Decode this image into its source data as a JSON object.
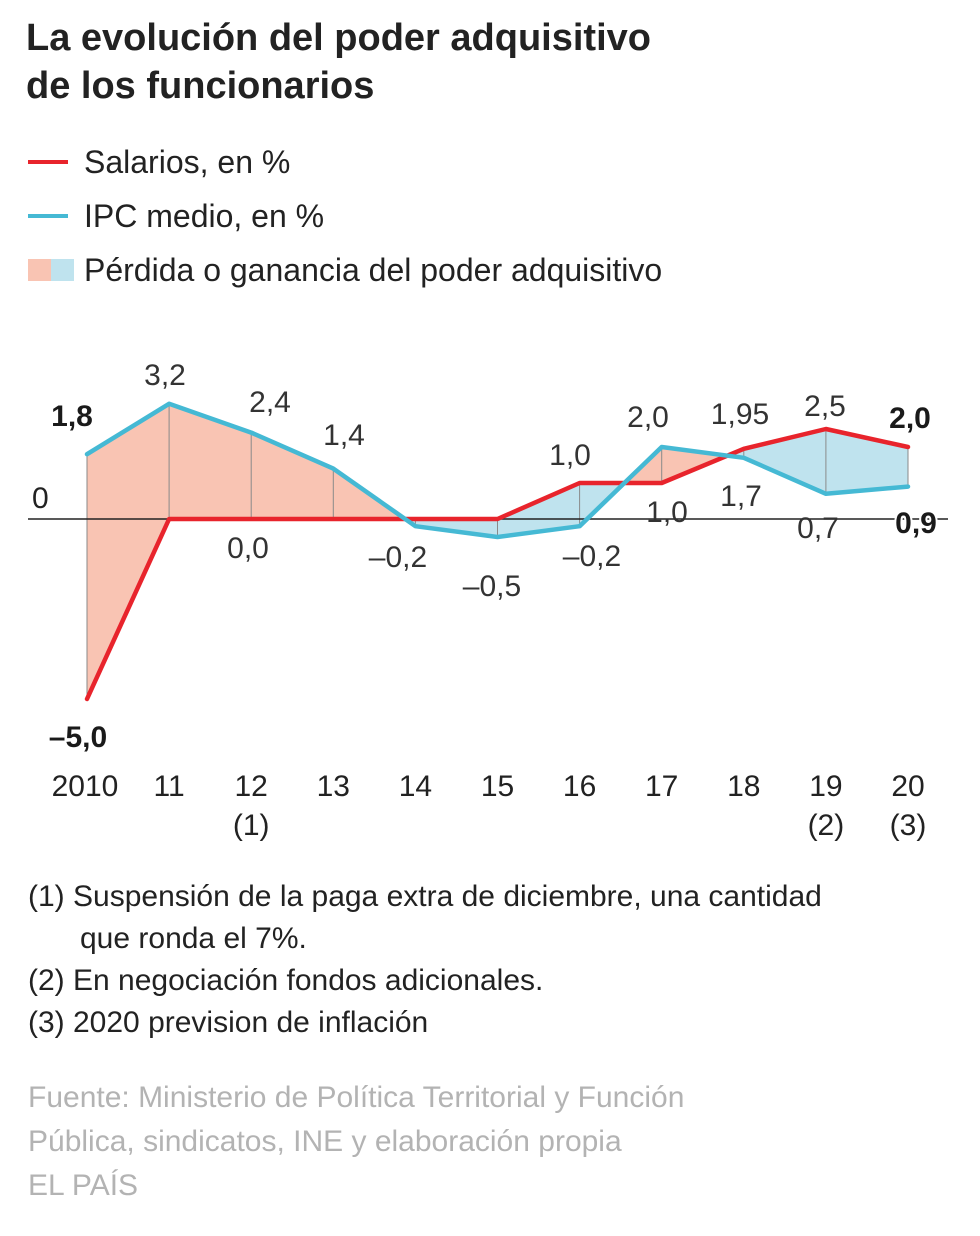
{
  "title": {
    "line1": "La evolución del poder adquisitivo",
    "line2": "de los funcionarios"
  },
  "legend": [
    {
      "label": "Salarios, en %",
      "color": "#e8242c",
      "icon": "line-swatch"
    },
    {
      "label": "IPC medio, en %",
      "color": "#45b9d4",
      "icon": "line-swatch"
    },
    {
      "label": "Pérdida o ganancia del poder adquisitivo",
      "icon": "area-swatch"
    }
  ],
  "colors": {
    "salarios": "#e8242c",
    "ipc": "#45b9d4",
    "loss_fill": "#f9c4b3",
    "gain_fill": "#bfe3ee",
    "text": "#1a1a1a",
    "source": "#b3b3b3"
  },
  "chart_data": {
    "type": "line",
    "title": "La evolución del poder adquisitivo de los funcionarios",
    "xlabel": "",
    "ylabel": "",
    "categories": [
      "2010",
      "11",
      "12",
      "13",
      "14",
      "15",
      "16",
      "17",
      "18",
      "19",
      "20"
    ],
    "category_notes": [
      "",
      "",
      "(1)",
      "",
      "",
      "",
      "",
      "",
      "",
      "(2)",
      "(3)"
    ],
    "ylim": [
      -5.5,
      3.8
    ],
    "zero_label": "0",
    "series": [
      {
        "name": "Salarios, en %",
        "color": "#e8242c",
        "values": [
          -5.0,
          0.0,
          0.0,
          0.0,
          0.0,
          0.0,
          1.0,
          1.0,
          1.95,
          2.5,
          2.0
        ],
        "labels": [
          "–5,0",
          "",
          "0,0",
          "",
          "",
          "",
          "1,0",
          "1,0",
          "1,95",
          "2,5",
          "2,0"
        ]
      },
      {
        "name": "IPC medio, en %",
        "color": "#45b9d4",
        "values": [
          1.8,
          3.2,
          2.4,
          1.4,
          -0.2,
          -0.5,
          -0.2,
          2.0,
          1.7,
          0.7,
          0.9
        ],
        "labels": [
          "1,8",
          "3,2",
          "2,4",
          "1,4",
          "–0,2",
          "–0,5",
          "–0,2",
          "2,0",
          "1,7",
          "0,7",
          "0,9"
        ]
      }
    ],
    "fill": "Pérdida o ganancia del poder adquisitivo"
  },
  "notes": [
    {
      "text": "(1) Suspensión de la paga extra de diciembre, una cantidad"
    },
    {
      "text": "que ronda el 7%.",
      "indent": true
    },
    {
      "text": "(2) En negociación fondos adicionales."
    },
    {
      "text": "(3) 2020 prevision de inflación"
    }
  ],
  "source": {
    "line1": "Fuente: Ministerio de Política Territorial y Función",
    "line2": "Pública, sindicatos, INE y elaboración propia",
    "line3": "EL PAÍS"
  }
}
